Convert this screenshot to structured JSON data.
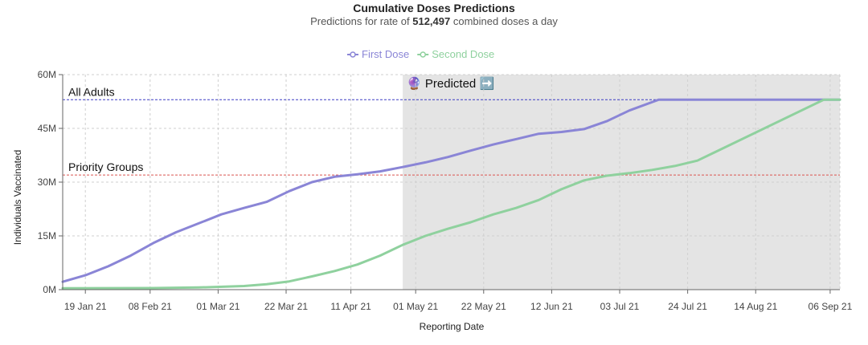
{
  "chart_data": {
    "type": "line",
    "title": "Cumulative Doses Predictions",
    "subtitle": {
      "prefix": "Predictions for rate of ",
      "rate": "512,497",
      "suffix": " combined doses a day"
    },
    "xlabel": "Reporting Date",
    "ylabel": "Individuals Vaccinated",
    "x_range": [
      "2021-01-12",
      "2021-09-09"
    ],
    "ylim": [
      0,
      60000000
    ],
    "y_ticks": [
      {
        "value": 0,
        "label": "0M"
      },
      {
        "value": 15000000,
        "label": "15M"
      },
      {
        "value": 30000000,
        "label": "30M"
      },
      {
        "value": 45000000,
        "label": "45M"
      },
      {
        "value": 60000000,
        "label": "60M"
      }
    ],
    "x_ticks": [
      {
        "date": "2021-01-19",
        "label": "19 Jan 21"
      },
      {
        "date": "2021-02-08",
        "label": "08 Feb 21"
      },
      {
        "date": "2021-03-01",
        "label": "01 Mar 21"
      },
      {
        "date": "2021-03-22",
        "label": "22 Mar 21"
      },
      {
        "date": "2021-04-11",
        "label": "11 Apr 21"
      },
      {
        "date": "2021-05-01",
        "label": "01 May 21"
      },
      {
        "date": "2021-05-22",
        "label": "22 May 21"
      },
      {
        "date": "2021-06-12",
        "label": "12 Jun 21"
      },
      {
        "date": "2021-07-03",
        "label": "03 Jul 21"
      },
      {
        "date": "2021-07-24",
        "label": "24 Jul 21"
      },
      {
        "date": "2021-08-14",
        "label": "14 Aug 21"
      },
      {
        "date": "2021-09-06",
        "label": "06 Sep 21"
      }
    ],
    "grid": true,
    "legend_position": "top-center",
    "predicted_region": {
      "start": "2021-04-27",
      "label": "Predicted",
      "emoji": "🔮",
      "arrow": "➡️",
      "color": "#e4e4e4"
    },
    "reference_lines": [
      {
        "label": "All Adults",
        "value": 53000000,
        "color": "#3b3bc4"
      },
      {
        "label": "Priority Groups",
        "value": 32000000,
        "color": "#d9534f"
      }
    ],
    "series": [
      {
        "name": "First Dose",
        "color": "#8a85d6",
        "points": [
          [
            "2021-01-12",
            2200000
          ],
          [
            "2021-01-19",
            4000000
          ],
          [
            "2021-01-26",
            6500000
          ],
          [
            "2021-02-02",
            9500000
          ],
          [
            "2021-02-09",
            13000000
          ],
          [
            "2021-02-16",
            16000000
          ],
          [
            "2021-02-23",
            18500000
          ],
          [
            "2021-03-02",
            21000000
          ],
          [
            "2021-03-09",
            22800000
          ],
          [
            "2021-03-16",
            24500000
          ],
          [
            "2021-03-23",
            27500000
          ],
          [
            "2021-03-30",
            30000000
          ],
          [
            "2021-04-06",
            31500000
          ],
          [
            "2021-04-13",
            32200000
          ],
          [
            "2021-04-20",
            33000000
          ],
          [
            "2021-04-27",
            34200000
          ],
          [
            "2021-05-04",
            35500000
          ],
          [
            "2021-05-11",
            37000000
          ],
          [
            "2021-05-18",
            38800000
          ],
          [
            "2021-05-25",
            40500000
          ],
          [
            "2021-06-01",
            42000000
          ],
          [
            "2021-06-08",
            43500000
          ],
          [
            "2021-06-15",
            44000000
          ],
          [
            "2021-06-22",
            44800000
          ],
          [
            "2021-06-29",
            47000000
          ],
          [
            "2021-07-06",
            50000000
          ],
          [
            "2021-07-15",
            53000000
          ],
          [
            "2021-09-09",
            53000000
          ]
        ]
      },
      {
        "name": "Second Dose",
        "color": "#8fd19e",
        "points": [
          [
            "2021-01-12",
            400000
          ],
          [
            "2021-02-09",
            450000
          ],
          [
            "2021-02-23",
            600000
          ],
          [
            "2021-03-09",
            1000000
          ],
          [
            "2021-03-16",
            1500000
          ],
          [
            "2021-03-23",
            2300000
          ],
          [
            "2021-03-30",
            3700000
          ],
          [
            "2021-04-06",
            5200000
          ],
          [
            "2021-04-13",
            7000000
          ],
          [
            "2021-04-20",
            9500000
          ],
          [
            "2021-04-27",
            12500000
          ],
          [
            "2021-05-04",
            15000000
          ],
          [
            "2021-05-11",
            17000000
          ],
          [
            "2021-05-18",
            18800000
          ],
          [
            "2021-05-25",
            21000000
          ],
          [
            "2021-06-01",
            22800000
          ],
          [
            "2021-06-08",
            25000000
          ],
          [
            "2021-06-15",
            28000000
          ],
          [
            "2021-06-22",
            30500000
          ],
          [
            "2021-06-29",
            31800000
          ],
          [
            "2021-07-06",
            32500000
          ],
          [
            "2021-07-13",
            33400000
          ],
          [
            "2021-07-20",
            34500000
          ],
          [
            "2021-07-27",
            36000000
          ],
          [
            "2021-09-04",
            53000000
          ],
          [
            "2021-09-09",
            53000000
          ]
        ]
      }
    ]
  }
}
